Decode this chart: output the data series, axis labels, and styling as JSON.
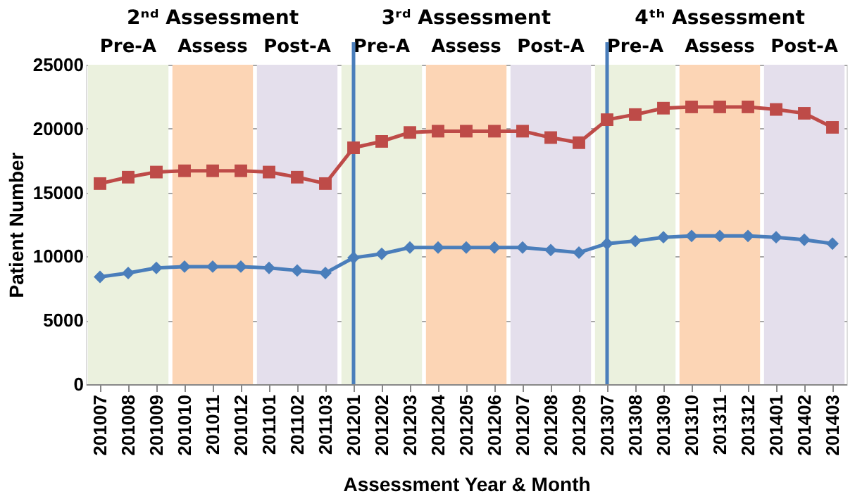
{
  "chart_data": {
    "type": "line",
    "xlabel": "Assessment Year & Month",
    "ylabel": "Patient Number",
    "categories": [
      "201007",
      "201008",
      "201009",
      "201010",
      "201011",
      "201012",
      "201101",
      "201102",
      "201103",
      "201201",
      "201202",
      "201203",
      "201204",
      "201205",
      "201206",
      "201207",
      "201208",
      "201209",
      "201307",
      "201308",
      "201309",
      "201310",
      "201311",
      "201312",
      "201401",
      "201402",
      "201403"
    ],
    "series": [
      {
        "color": "#be4b48",
        "marker": "square",
        "values": [
          15700,
          16200,
          16600,
          16700,
          16700,
          16700,
          16600,
          16200,
          15700,
          18500,
          19000,
          19700,
          19800,
          19800,
          19800,
          19800,
          19300,
          18900,
          20700,
          21100,
          21600,
          21700,
          21700,
          21700,
          21500,
          21200,
          20100
        ]
      },
      {
        "color": "#4a7ebb",
        "marker": "diamond",
        "values": [
          8400,
          8700,
          9100,
          9200,
          9200,
          9200,
          9100,
          8900,
          8700,
          9900,
          10200,
          10700,
          10700,
          10700,
          10700,
          10700,
          10500,
          10300,
          11000,
          11200,
          11500,
          11600,
          11600,
          11600,
          11500,
          11300,
          11000
        ]
      }
    ],
    "ylim": [
      0,
      25000
    ],
    "yticks": [
      0,
      5000,
      10000,
      15000,
      20000,
      25000
    ],
    "grid": "y",
    "bands": [
      {
        "axis": "x",
        "from": "201007",
        "to": "201009",
        "label": "Pre-A",
        "color": "#ebf1de"
      },
      {
        "axis": "x",
        "from": "201010",
        "to": "201012",
        "label": "Assess",
        "color": "#fcd5b5"
      },
      {
        "axis": "x",
        "from": "201101",
        "to": "201103",
        "label": "Post-A",
        "color": "#e4dfec"
      },
      {
        "axis": "x",
        "from": "201201",
        "to": "201203",
        "label": "Pre-A",
        "color": "#ebf1de"
      },
      {
        "axis": "x",
        "from": "201204",
        "to": "201206",
        "label": "Assess",
        "color": "#fcd5b5"
      },
      {
        "axis": "x",
        "from": "201207",
        "to": "201209",
        "label": "Post-A",
        "color": "#e4dfec"
      },
      {
        "axis": "x",
        "from": "201307",
        "to": "201309",
        "label": "Pre-A",
        "color": "#ebf1de"
      },
      {
        "axis": "x",
        "from": "201310",
        "to": "201312",
        "label": "Assess",
        "color": "#fcd5b5"
      },
      {
        "axis": "x",
        "from": "201401",
        "to": "201403",
        "label": "Post-A",
        "color": "#e4dfec"
      }
    ],
    "ref_lines": [
      {
        "axis": "x",
        "value": "201201",
        "color": "#4a7ebb"
      },
      {
        "axis": "x",
        "value": "201307",
        "color": "#4a7ebb"
      }
    ],
    "annotations": [
      "2ⁿᵈ Assessment",
      "3ʳᵈ Assessment",
      "4ᵗʰ Assessment"
    ]
  }
}
